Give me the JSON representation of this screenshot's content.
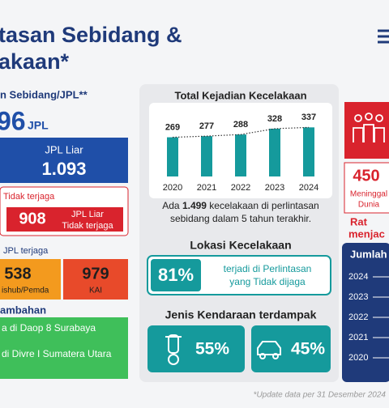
{
  "header": {
    "title_line1": "tasan Sebidang &",
    "title_line2": "akaan*"
  },
  "left": {
    "heading": "n Sebidang/JPL**",
    "total_number": "96",
    "total_unit": "JPL",
    "liar": {
      "label": "JPL Liar",
      "value": "1.093"
    },
    "tidak_terjaga": {
      "label": "Tidak terjaga",
      "value": "908",
      "sub_line1": "JPL Liar",
      "sub_line2": "Tidak terjaga"
    },
    "terjaga": {
      "label": "JPL terjaga",
      "dishub": {
        "value": "538",
        "label": "ishub/Pemda"
      },
      "kai": {
        "value": "979",
        "label": "KAI"
      }
    },
    "tambahan": {
      "heading": "ambahan",
      "item1": "a di Daop 8 Surabaya",
      "item2": "di Divre I Sumatera Utara"
    }
  },
  "middle": {
    "accidents_chart": {
      "type": "bar",
      "title": "Total Kejadian Kecelakaan",
      "categories": [
        "2020",
        "2021",
        "2022",
        "2023",
        "2024"
      ],
      "values": [
        269,
        277,
        288,
        328,
        337
      ],
      "color": "#159a9c"
    },
    "summary": {
      "pre": "Ada ",
      "bold": "1.499",
      "post": " kecelakaan di perlintasan",
      "line2": "sebidang dalam 5 tahun terakhir."
    },
    "location": {
      "title": "Lokasi Kecelakaan",
      "percent": "81%",
      "text_line1": "terjadi di Perlintasan",
      "text_line2": "yang Tidak dijaga"
    },
    "vehicles": {
      "title": "Jenis Kendaraan terdampak",
      "motorcycle": "55%",
      "car": "45%"
    },
    "footnote": "*Update data per 31 Desember 2024"
  },
  "right": {
    "deaths": {
      "value": "450",
      "label_line1": "Meninggal",
      "label_line2": "Dunia"
    },
    "rate_line1": "Rat",
    "rate_line2": "menjac",
    "jumlah": {
      "title": "Jumlah",
      "years": [
        "2024",
        "2023",
        "2022",
        "2021",
        "2020"
      ]
    }
  }
}
